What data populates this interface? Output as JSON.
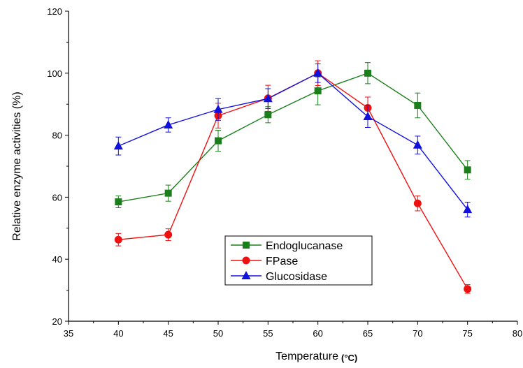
{
  "chart_data": {
    "type": "line",
    "xlabel": "Temperature",
    "xlabel_unit": "(°C)",
    "ylabel": "Relative enzyme activities (%)",
    "xlim": [
      35,
      80
    ],
    "ylim": [
      20,
      120
    ],
    "xticks": [
      35,
      40,
      45,
      50,
      55,
      60,
      65,
      70,
      75,
      80
    ],
    "yticks": [
      20,
      40,
      60,
      80,
      100,
      120
    ],
    "grid": false,
    "legend_position": "lower-center",
    "x": [
      40,
      45,
      50,
      55,
      60,
      65,
      70,
      75
    ],
    "series": [
      {
        "name": "Endoglucanase",
        "color": "#1a7f1a",
        "marker": "square",
        "values": [
          58.5,
          61.3,
          78.2,
          86.6,
          94.3,
          100.0,
          89.6,
          68.8
        ],
        "errors": [
          1.9,
          2.6,
          3.4,
          2.6,
          4.5,
          3.4,
          4.0,
          3.0
        ]
      },
      {
        "name": "FPase",
        "color": "#ee1111",
        "marker": "circle",
        "values": [
          46.3,
          47.9,
          86.3,
          91.9,
          100.0,
          88.8,
          58.0,
          30.4
        ],
        "errors": [
          2.0,
          1.9,
          4.0,
          4.2,
          4.0,
          3.5,
          2.4,
          1.4
        ]
      },
      {
        "name": "Glucosidase",
        "color": "#1111dd",
        "marker": "triangle",
        "values": [
          76.5,
          83.3,
          88.3,
          91.8,
          100.0,
          86.0,
          76.8,
          56.0
        ],
        "errors": [
          2.9,
          2.3,
          3.5,
          3.2,
          3.0,
          3.5,
          2.9,
          2.4
        ]
      }
    ]
  }
}
